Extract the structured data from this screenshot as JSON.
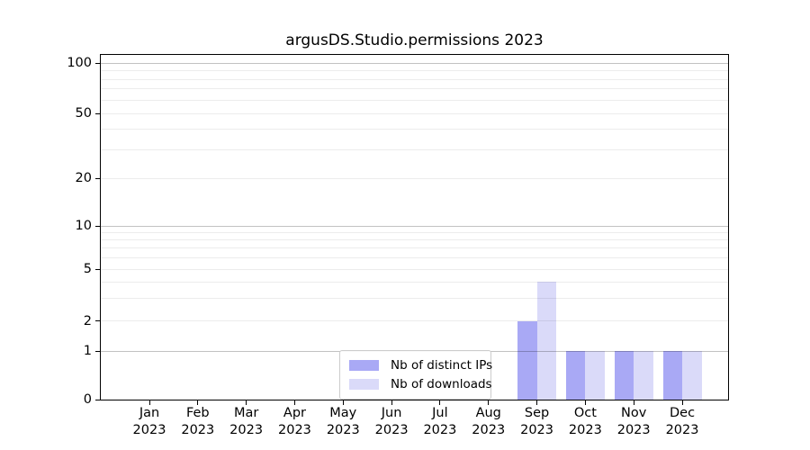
{
  "chart_data": {
    "type": "bar",
    "title": "argusDS.Studio.permissions 2023",
    "categories": [
      "Jan",
      "Feb",
      "Mar",
      "Apr",
      "May",
      "Jun",
      "Jul",
      "Aug",
      "Sep",
      "Oct",
      "Nov",
      "Dec"
    ],
    "category_year": "2023",
    "series": [
      {
        "name": "Nb of distinct IPs",
        "color": "#a9a9f5",
        "values": [
          0,
          0,
          0,
          0,
          0,
          0,
          0,
          0,
          2,
          1,
          1,
          1
        ]
      },
      {
        "name": "Nb of downloads",
        "color": "#dadaf9",
        "values": [
          0,
          0,
          0,
          0,
          0,
          0,
          0,
          0,
          4,
          1,
          1,
          1
        ]
      }
    ],
    "yaxis": {
      "scale": "symlog",
      "tick_labels": [
        "0",
        "1",
        "2",
        "5",
        "10",
        "20",
        "50",
        "100"
      ],
      "tick_values": [
        0,
        1,
        2,
        5,
        10,
        20,
        50,
        100
      ],
      "minor_gridline_values": [
        3,
        4,
        6,
        7,
        8,
        9,
        30,
        40,
        60,
        70,
        80,
        90
      ],
      "ylim": [
        0,
        112
      ]
    },
    "xaxis": {
      "tick_label_lines": 2
    },
    "legend": {
      "position": "lower center inside axes",
      "entries": [
        "Nb of distinct IPs",
        "Nb of downloads"
      ]
    },
    "grid": {
      "axis": "y",
      "major_on": [
        1,
        10,
        100
      ],
      "minor_on": [
        2,
        3,
        4,
        5,
        6,
        7,
        8,
        9,
        20,
        30,
        40,
        50,
        60,
        70,
        80,
        90
      ]
    }
  }
}
